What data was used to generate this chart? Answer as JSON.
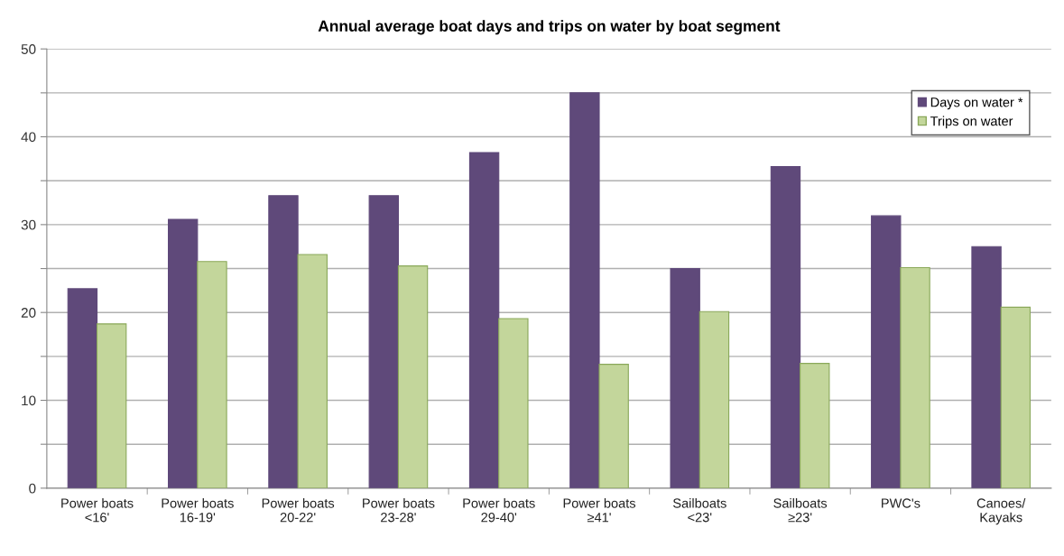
{
  "chart_data": {
    "type": "bar",
    "title": "Annual average boat days and trips on water by boat segment",
    "categories": [
      "Power boats\n<16'",
      "Power boats\n16-19'",
      "Power boats\n20-22'",
      "Power boats\n23-28'",
      "Power boats\n29-40'",
      "Power boats\n≥41'",
      "Sailboats\n<23'",
      "Sailboats\n≥23'",
      "PWC's",
      "Canoes/\nKayaks"
    ],
    "series": [
      {
        "name": "Days on water *",
        "color": "#5f497a",
        "values": [
          22.7,
          30.6,
          33.3,
          33.3,
          38.2,
          45.0,
          25.0,
          36.6,
          31.0,
          27.5
        ]
      },
      {
        "name": "Trips on water",
        "color": "#c3d69b",
        "values": [
          18.7,
          25.8,
          26.6,
          25.3,
          19.3,
          14.1,
          20.1,
          14.2,
          25.1,
          20.6
        ]
      }
    ],
    "ylim": [
      0,
      50
    ],
    "yticks": [
      0,
      {
        "value": 5,
        "label": null
      },
      10,
      {
        "value": 15,
        "label": null
      },
      20,
      {
        "value": 25,
        "label": null
      },
      30,
      {
        "value": 35,
        "label": null
      },
      40,
      {
        "value": 45,
        "label": null
      },
      50
    ],
    "grid": "y",
    "legend": "top right"
  }
}
